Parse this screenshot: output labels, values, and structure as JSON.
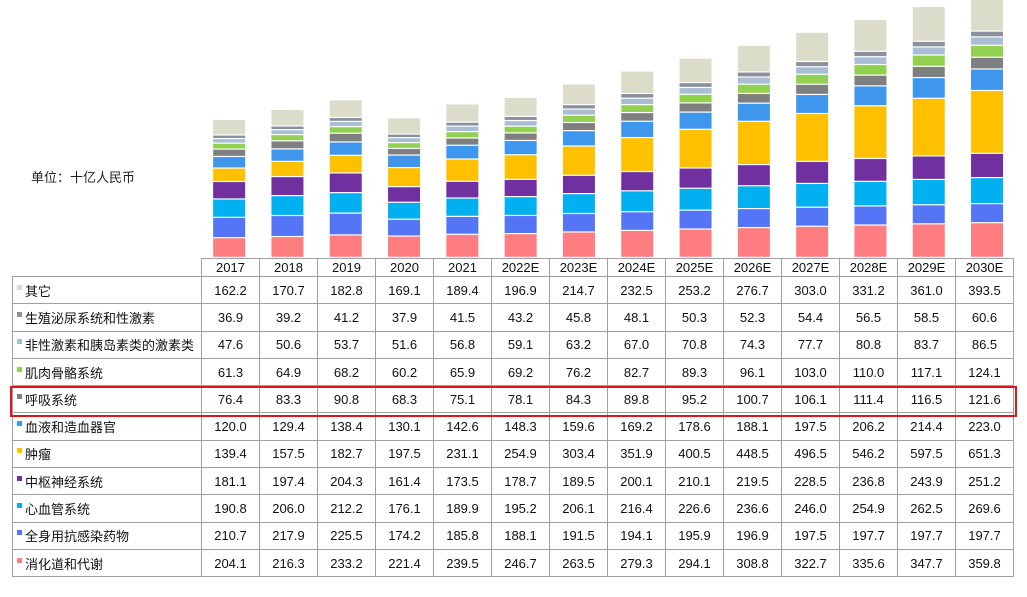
{
  "chart_data": {
    "type": "bar",
    "stacked": true,
    "unit_label": "单位：十亿人民币",
    "categories": [
      "2017",
      "2018",
      "2019",
      "2020",
      "2021",
      "2022E",
      "2023E",
      "2024E",
      "2025E",
      "2026E",
      "2027E",
      "2028E",
      "2029E",
      "2030E"
    ],
    "series": [
      {
        "name": "其它",
        "color": "#DCDCCB",
        "values": [
          162.2,
          170.7,
          182.8,
          169.1,
          189.4,
          196.9,
          214.7,
          232.5,
          253.2,
          276.7,
          303.0,
          331.2,
          361.0,
          393.5
        ]
      },
      {
        "name": "生殖泌尿系统和性激素",
        "color": "#8C8F9C",
        "values": [
          36.9,
          39.2,
          41.2,
          37.9,
          41.5,
          43.2,
          45.8,
          48.1,
          50.3,
          52.3,
          54.4,
          56.5,
          58.5,
          60.6
        ]
      },
      {
        "name": "非性激素和胰岛素类的激素类",
        "color": "#A9BDD4",
        "values": [
          47.6,
          50.6,
          53.7,
          51.6,
          56.8,
          59.1,
          63.2,
          67.0,
          70.8,
          74.3,
          77.7,
          80.8,
          83.7,
          86.5
        ]
      },
      {
        "name": "肌肉骨骼系统",
        "color": "#92D050",
        "values": [
          61.3,
          64.9,
          68.2,
          60.2,
          65.9,
          69.2,
          76.2,
          82.7,
          89.3,
          96.1,
          103.0,
          110.0,
          117.1,
          124.1
        ]
      },
      {
        "name": "呼吸系统",
        "color": "#7F7F7F",
        "values": [
          76.4,
          83.3,
          90.8,
          68.3,
          75.1,
          78.1,
          84.3,
          89.8,
          95.2,
          100.7,
          106.1,
          111.4,
          116.5,
          121.6
        ]
      },
      {
        "name": "血液和造血器官",
        "color": "#3E97EC",
        "values": [
          120.0,
          129.4,
          138.4,
          130.1,
          142.6,
          148.3,
          159.6,
          169.2,
          178.6,
          188.1,
          197.5,
          206.2,
          214.4,
          223.0
        ]
      },
      {
        "name": "肿瘤",
        "color": "#FFC000",
        "values": [
          139.4,
          157.5,
          182.7,
          197.5,
          231.1,
          254.9,
          303.4,
          351.9,
          400.5,
          448.5,
          496.5,
          546.2,
          597.5,
          651.3
        ]
      },
      {
        "name": "中枢神经系统",
        "color": "#7030A0",
        "values": [
          181.1,
          197.4,
          204.3,
          161.4,
          173.5,
          178.7,
          189.5,
          200.1,
          210.1,
          219.5,
          228.5,
          236.8,
          243.9,
          251.2
        ]
      },
      {
        "name": "心血管系统",
        "color": "#00B0F0",
        "values": [
          190.8,
          206.0,
          212.2,
          176.1,
          189.9,
          195.2,
          206.1,
          216.4,
          226.6,
          236.6,
          246.0,
          254.9,
          262.5,
          269.6
        ]
      },
      {
        "name": "全身用抗感染药物",
        "color": "#5375F6",
        "values": [
          210.7,
          217.9,
          225.5,
          174.2,
          185.8,
          188.1,
          191.5,
          194.1,
          195.9,
          196.9,
          197.5,
          197.7,
          197.7,
          197.7
        ]
      },
      {
        "name": "消化道和代谢",
        "color": "#FF7C80",
        "values": [
          204.1,
          216.3,
          233.2,
          221.4,
          239.5,
          246.7,
          263.5,
          279.3,
          294.1,
          308.8,
          322.7,
          335.6,
          347.7,
          359.8
        ]
      }
    ],
    "highlighted_row": "呼吸系统",
    "highlight_color": "#E0161C"
  }
}
